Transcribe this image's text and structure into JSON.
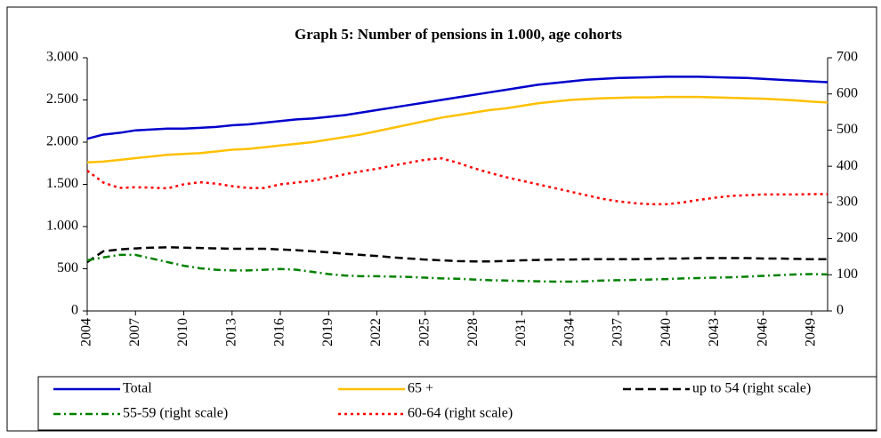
{
  "chart_data": {
    "type": "line",
    "title": "Graph 5: Number of pensions in 1.000, age cohorts",
    "x": [
      2004,
      2005,
      2006,
      2007,
      2008,
      2009,
      2010,
      2011,
      2012,
      2013,
      2014,
      2015,
      2016,
      2017,
      2018,
      2019,
      2020,
      2021,
      2022,
      2023,
      2024,
      2025,
      2026,
      2027,
      2028,
      2029,
      2030,
      2031,
      2032,
      2033,
      2034,
      2035,
      2036,
      2037,
      2038,
      2039,
      2040,
      2041,
      2042,
      2043,
      2044,
      2045,
      2046,
      2047,
      2048,
      2049,
      2050
    ],
    "xlim": [
      2004,
      2050
    ],
    "xticks": [
      2004,
      2007,
      2010,
      2013,
      2016,
      2019,
      2022,
      2025,
      2028,
      2031,
      2034,
      2037,
      2040,
      2043,
      2046,
      2049
    ],
    "ylim": [
      0,
      3000
    ],
    "yticks": [
      0,
      500,
      {
        "value": 1000,
        "label": "1.000"
      },
      {
        "value": 1500,
        "label": "1.500"
      },
      {
        "value": 2000,
        "label": "2.000"
      },
      {
        "value": 2500,
        "label": "2.500"
      },
      {
        "value": 3000,
        "label": "3.000"
      }
    ],
    "y2lim": [
      0,
      700
    ],
    "y2ticks": [
      0,
      100,
      200,
      300,
      400,
      500,
      600,
      700
    ],
    "series": [
      {
        "name": "Total",
        "color": "#0000cc",
        "dash": "none",
        "values": [
          2040,
          2090,
          2110,
          2140,
          2150,
          2160,
          2160,
          2170,
          2180,
          2200,
          2210,
          2230,
          2250,
          2270,
          2280,
          2300,
          2320,
          2350,
          2380,
          2410,
          2440,
          2470,
          2500,
          2530,
          2560,
          2590,
          2620,
          2650,
          2680,
          2700,
          2720,
          2740,
          2750,
          2760,
          2765,
          2770,
          2775,
          2775,
          2775,
          2770,
          2765,
          2760,
          2750,
          2740,
          2730,
          2720,
          2710
        ]
      },
      {
        "name": "65 +",
        "color": "#ffc000",
        "dash": "none",
        "values": [
          1760,
          1770,
          1790,
          1810,
          1830,
          1850,
          1860,
          1870,
          1890,
          1910,
          1920,
          1940,
          1960,
          1980,
          2000,
          2030,
          2060,
          2090,
          2130,
          2170,
          2210,
          2250,
          2290,
          2320,
          2350,
          2380,
          2400,
          2430,
          2460,
          2480,
          2500,
          2510,
          2520,
          2525,
          2530,
          2530,
          2535,
          2535,
          2535,
          2530,
          2525,
          2520,
          2515,
          2505,
          2495,
          2480,
          2470
        ]
      },
      {
        "name": "up to 54 (right scale)",
        "color": "#000000",
        "dash": "9,5",
        "axis": "y2",
        "values": [
          135,
          165,
          170,
          173,
          175,
          176,
          175,
          174,
          173,
          172,
          172,
          172,
          170,
          168,
          165,
          162,
          158,
          155,
          152,
          148,
          145,
          142,
          140,
          138,
          137,
          137,
          138,
          140,
          141,
          142,
          142,
          143,
          143,
          143,
          143,
          144,
          145,
          145,
          146,
          146,
          146,
          146,
          145,
          145,
          144,
          143,
          143
        ]
      },
      {
        "name": "55-59 (right scale)",
        "color": "#008000",
        "dash": "8,4,2,4",
        "axis": "y2",
        "values": [
          140,
          148,
          155,
          155,
          145,
          135,
          125,
          118,
          114,
          112,
          112,
          114,
          116,
          114,
          108,
          102,
          98,
          96,
          96,
          95,
          94,
          92,
          90,
          89,
          87,
          85,
          84,
          83,
          82,
          81,
          81,
          82,
          84,
          85,
          86,
          87,
          88,
          90,
          91,
          92,
          93,
          95,
          97,
          99,
          101,
          102,
          101
        ]
      },
      {
        "name": "60-64 (right scale)",
        "color": "#ff0000",
        "dash": "3,4",
        "axis": "y2",
        "values": [
          388,
          355,
          340,
          342,
          341,
          339,
          350,
          356,
          352,
          345,
          340,
          340,
          350,
          355,
          360,
          368,
          378,
          386,
          393,
          402,
          410,
          418,
          422,
          410,
          395,
          382,
          370,
          360,
          350,
          340,
          330,
          320,
          310,
          303,
          298,
          295,
          295,
          300,
          307,
          313,
          318,
          320,
          322,
          322,
          322,
          323,
          323
        ]
      }
    ]
  }
}
